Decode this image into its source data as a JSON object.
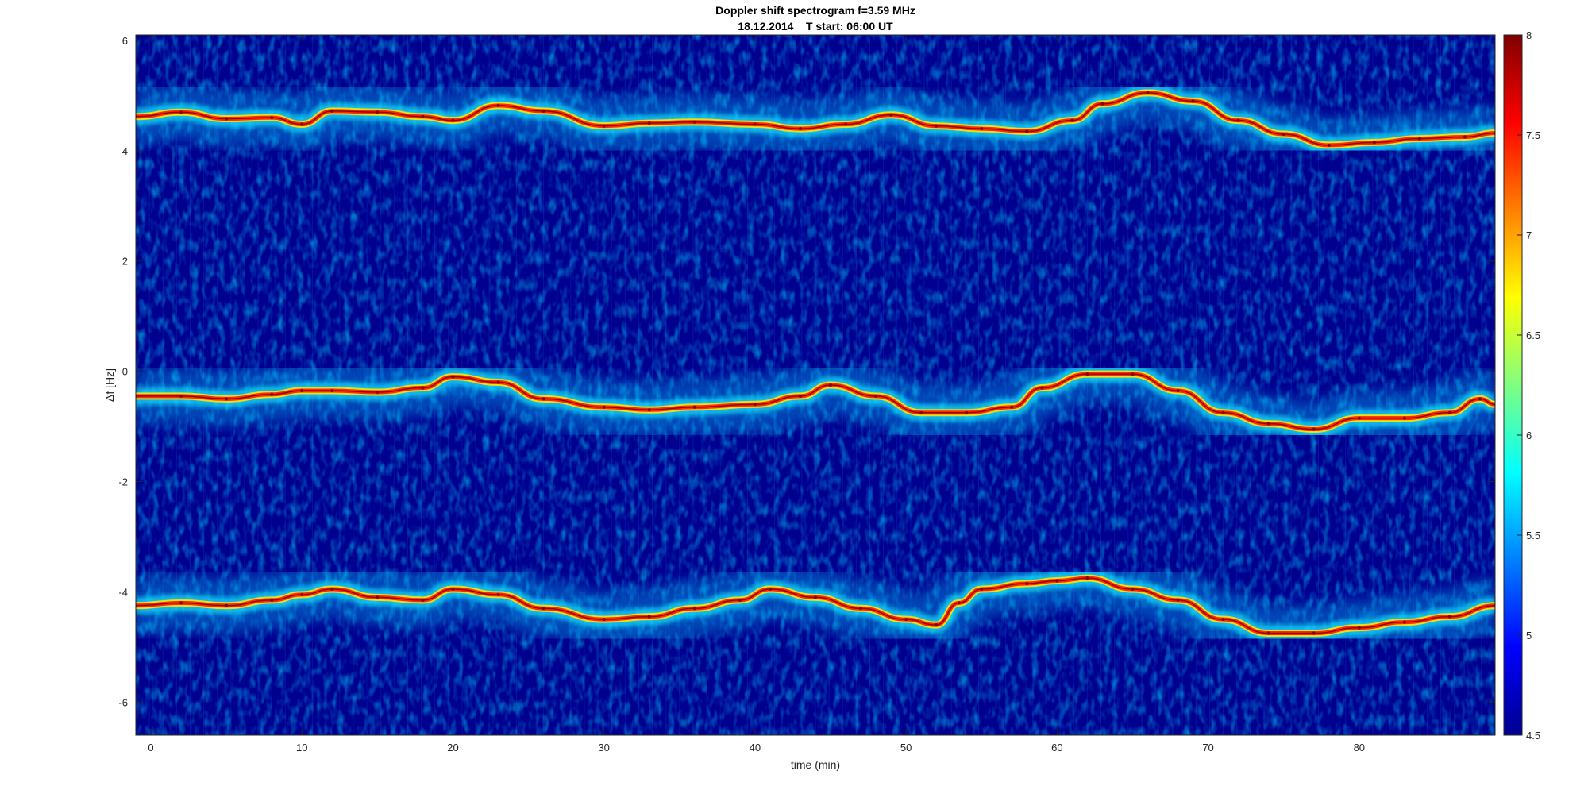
{
  "chart_data": {
    "type": "heatmap",
    "title": "Doppler shift spectrogram f=3.59 MHz",
    "subtitle": "18.12.2014    T start: 06:00 UT",
    "xlabel": "time (min)",
    "ylabel": "Δf [Hz]",
    "xlim": [
      -1,
      89
    ],
    "ylim": [
      -6.6,
      6.1
    ],
    "xticks": [
      0,
      10,
      20,
      30,
      40,
      50,
      60,
      70,
      80
    ],
    "yticks": [
      -6,
      -4,
      -2,
      0,
      2,
      4,
      6
    ],
    "colorbar": {
      "clim": [
        4.5,
        8
      ],
      "ticks": [
        4.5,
        5,
        5.5,
        6,
        6.5,
        7,
        7.5,
        8
      ],
      "colormap": "jet"
    },
    "grid": false,
    "background_color": "#00008f",
    "series": [
      {
        "x": [
          -1,
          2,
          5,
          8,
          10,
          12,
          15,
          18,
          20,
          23,
          26,
          30,
          33,
          36,
          40,
          43,
          46,
          49,
          52,
          55,
          58,
          61,
          63,
          66,
          69,
          72,
          75,
          78,
          81,
          84,
          87,
          89
        ],
        "values": [
          4.62,
          4.7,
          4.58,
          4.6,
          4.48,
          4.72,
          4.7,
          4.62,
          4.55,
          4.82,
          4.72,
          4.45,
          4.5,
          4.52,
          4.48,
          4.4,
          4.48,
          4.65,
          4.45,
          4.4,
          4.35,
          4.55,
          4.85,
          5.05,
          4.9,
          4.55,
          4.3,
          4.1,
          4.15,
          4.22,
          4.25,
          4.32
        ]
      },
      {
        "x": [
          -1,
          2,
          5,
          8,
          10,
          12,
          15,
          18,
          20,
          23,
          26,
          30,
          33,
          36,
          40,
          43,
          45,
          48,
          51,
          54,
          57,
          59,
          62,
          65,
          68,
          71,
          74,
          77,
          80,
          83,
          86,
          88,
          89
        ],
        "values": [
          -0.45,
          -0.45,
          -0.5,
          -0.42,
          -0.35,
          -0.35,
          -0.38,
          -0.3,
          -0.1,
          -0.2,
          -0.5,
          -0.65,
          -0.7,
          -0.65,
          -0.6,
          -0.45,
          -0.25,
          -0.45,
          -0.75,
          -0.75,
          -0.65,
          -0.3,
          -0.05,
          -0.05,
          -0.35,
          -0.75,
          -0.95,
          -1.05,
          -0.85,
          -0.85,
          -0.75,
          -0.5,
          -0.6
        ]
      },
      {
        "x": [
          -1,
          2,
          5,
          8,
          10,
          12,
          15,
          18,
          20,
          23,
          26,
          30,
          33,
          36,
          39,
          41,
          44,
          47,
          50,
          52,
          53.5,
          55,
          58,
          60,
          62,
          65,
          68,
          71,
          74,
          77,
          80,
          83,
          86,
          89
        ],
        "values": [
          -4.25,
          -4.2,
          -4.25,
          -4.15,
          -4.05,
          -3.95,
          -4.1,
          -4.15,
          -3.95,
          -4.05,
          -4.3,
          -4.5,
          -4.45,
          -4.3,
          -4.15,
          -3.95,
          -4.1,
          -4.3,
          -4.5,
          -4.6,
          -4.2,
          -3.95,
          -3.85,
          -3.8,
          -3.75,
          -3.95,
          -4.15,
          -4.5,
          -4.75,
          -4.75,
          -4.65,
          -4.55,
          -4.45,
          -4.25
        ]
      }
    ]
  }
}
